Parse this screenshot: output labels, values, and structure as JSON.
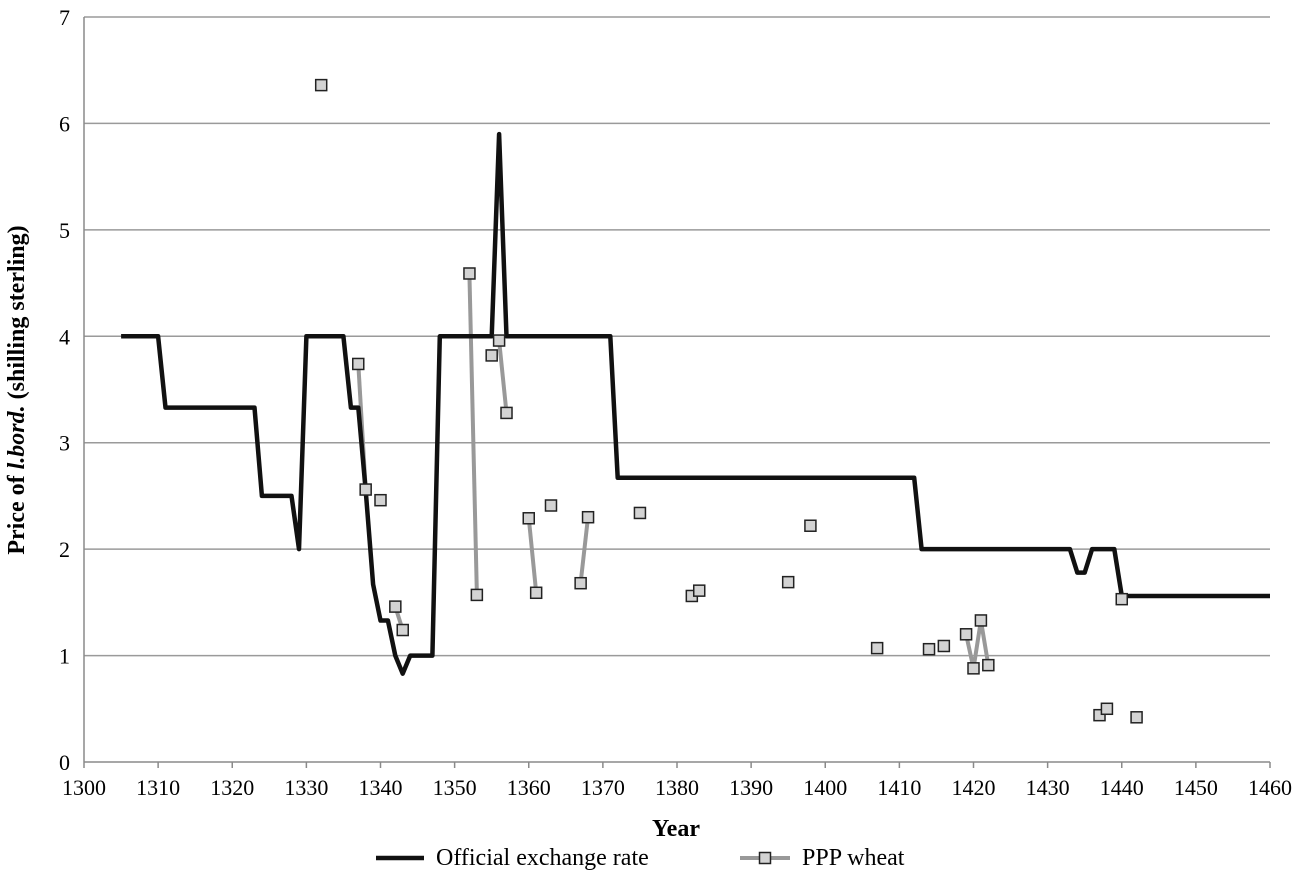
{
  "chart_data": {
    "type": "line",
    "title": "",
    "xlabel": "Year",
    "ylabel_parts": [
      "Price of ",
      "l.bord.",
      " (shilling sterling)"
    ],
    "xlim": [
      1300,
      1460
    ],
    "ylim": [
      0,
      7
    ],
    "xticks": [
      "1300",
      "1310",
      "1320",
      "1330",
      "1340",
      "1350",
      "1360",
      "1370",
      "1380",
      "1390",
      "1400",
      "1410",
      "1420",
      "1430",
      "1440",
      "1450",
      "1460"
    ],
    "yticks": [
      "0",
      "1",
      "2",
      "3",
      "4",
      "5",
      "6",
      "7"
    ],
    "grid": "horizontal",
    "legend_position": "bottom",
    "series": [
      {
        "name": "Official exchange rate",
        "color": "#111111",
        "marker": "none",
        "points": [
          [
            1305,
            4
          ],
          [
            1310,
            4
          ],
          [
            1311,
            3.33
          ],
          [
            1323,
            3.33
          ],
          [
            1324,
            2.5
          ],
          [
            1328,
            2.5
          ],
          [
            1329,
            2
          ],
          [
            1330,
            4
          ],
          [
            1335,
            4
          ],
          [
            1336,
            3.33
          ],
          [
            1337,
            3.33
          ],
          [
            1338,
            2.55
          ],
          [
            1339,
            1.67
          ],
          [
            1340,
            1.33
          ],
          [
            1341,
            1.33
          ],
          [
            1342,
            1
          ],
          [
            1343,
            0.83
          ],
          [
            1344,
            1
          ],
          [
            1347,
            1
          ],
          [
            1348,
            4
          ],
          [
            1355,
            4
          ],
          [
            1356,
            5.9
          ],
          [
            1357,
            4
          ],
          [
            1371,
            4
          ],
          [
            1372,
            2.67
          ],
          [
            1412,
            2.67
          ],
          [
            1413,
            2
          ],
          [
            1433,
            2
          ],
          [
            1434,
            1.78
          ],
          [
            1435,
            1.78
          ],
          [
            1436,
            2
          ],
          [
            1439,
            2
          ],
          [
            1440,
            1.56
          ],
          [
            1460,
            1.56
          ]
        ]
      },
      {
        "name": "PPP wheat",
        "color": "#999999",
        "marker": "square",
        "points": [
          [
            1332,
            6.36
          ],
          [
            1337,
            3.74
          ],
          [
            1338,
            2.56
          ],
          [
            1340,
            2.46
          ],
          [
            1342,
            1.46
          ],
          [
            1343,
            1.24
          ],
          [
            1352,
            4.59
          ],
          [
            1353,
            1.57
          ],
          [
            1355,
            3.82
          ],
          [
            1356,
            3.96
          ],
          [
            1357,
            3.28
          ],
          [
            1360,
            2.29
          ],
          [
            1361,
            1.59
          ],
          [
            1363,
            2.41
          ],
          [
            1367,
            1.68
          ],
          [
            1368,
            2.3
          ],
          [
            1375,
            2.34
          ],
          [
            1382,
            1.56
          ],
          [
            1383,
            1.61
          ],
          [
            1395,
            1.69
          ],
          [
            1398,
            2.22
          ],
          [
            1407,
            1.07
          ],
          [
            1414,
            1.06
          ],
          [
            1416,
            1.09
          ],
          [
            1419,
            1.2
          ],
          [
            1420,
            0.88
          ],
          [
            1421,
            1.33
          ],
          [
            1422,
            0.91
          ],
          [
            1437,
            0.44
          ],
          [
            1438,
            0.5
          ],
          [
            1440,
            1.53
          ],
          [
            1442,
            0.42
          ]
        ],
        "connected_segments": [
          [
            [
              1337,
              3.74
            ],
            [
              1338,
              2.56
            ]
          ],
          [
            [
              1342,
              1.46
            ],
            [
              1343,
              1.24
            ]
          ],
          [
            [
              1352,
              4.59
            ],
            [
              1353,
              1.57
            ]
          ],
          [
            [
              1356,
              3.96
            ],
            [
              1357,
              3.28
            ]
          ],
          [
            [
              1360,
              2.29
            ],
            [
              1361,
              1.59
            ]
          ],
          [
            [
              1367,
              1.68
            ],
            [
              1368,
              2.3
            ]
          ],
          [
            [
              1419,
              1.2
            ],
            [
              1420,
              0.88
            ],
            [
              1421,
              1.33
            ],
            [
              1422,
              0.91
            ]
          ],
          [
            [
              1437,
              0.44
            ],
            [
              1438,
              0.5
            ]
          ]
        ]
      }
    ]
  }
}
